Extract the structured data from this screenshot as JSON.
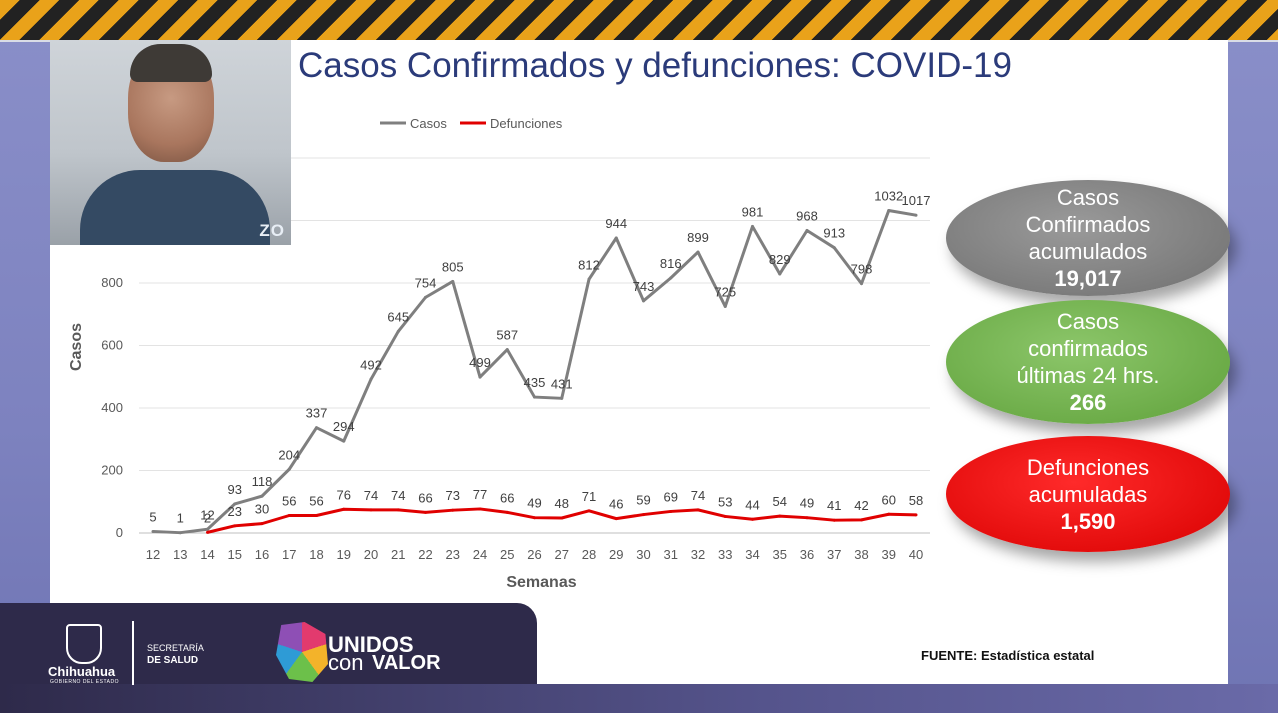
{
  "title": "Casos Confirmados y defunciones: COVID-19",
  "video_watermark": "ZO",
  "summary": [
    {
      "lines": [
        "Casos",
        "Confirmados",
        "acumulados"
      ],
      "value": "19,017",
      "color": "#7f7f7f"
    },
    {
      "lines": [
        "Casos",
        "confirmados",
        "últimas 24 hrs."
      ],
      "value": "266",
      "color": "#70ad47"
    },
    {
      "lines": [
        "Defunciones",
        "acumuladas"
      ],
      "value": "1,590",
      "color": "#ff0000"
    }
  ],
  "footer": {
    "state_name": "Chihuahua",
    "state_sub": "GOBIERNO DEL ESTADO",
    "secretaria_line1": "SECRETARÍA",
    "secretaria_line2": "DE SALUD",
    "unidos": "UNIDOS",
    "con": "con",
    "valor": "VALOR",
    "source": "FUENTE: Estadística estatal"
  },
  "chart_data": {
    "type": "line",
    "title": "",
    "xlabel": "Semanas",
    "ylabel": "Casos",
    "ylim": [
      0,
      1200
    ],
    "yticks": [
      0,
      200,
      400,
      600,
      800
    ],
    "grid": true,
    "legend_position": "top",
    "categories": [
      "12",
      "13",
      "14",
      "15",
      "16",
      "17",
      "18",
      "19",
      "20",
      "21",
      "22",
      "23",
      "24",
      "25",
      "26",
      "27",
      "28",
      "29",
      "30",
      "31",
      "32",
      "33",
      "34",
      "35",
      "36",
      "37",
      "38",
      "39",
      "40"
    ],
    "series": [
      {
        "name": "Casos",
        "color": "#7f7f7f",
        "values": [
          5,
          1,
          12,
          93,
          118,
          204,
          337,
          294,
          492,
          645,
          754,
          805,
          499,
          587,
          435,
          431,
          812,
          944,
          743,
          816,
          899,
          725,
          981,
          829,
          968,
          913,
          798,
          1032,
          1017
        ]
      },
      {
        "name": "Defunciones",
        "color": "#e00000",
        "values": [
          null,
          null,
          2,
          23,
          30,
          56,
          56,
          76,
          74,
          74,
          66,
          73,
          77,
          66,
          49,
          48,
          71,
          46,
          59,
          69,
          74,
          53,
          44,
          54,
          49,
          41,
          42,
          60,
          58
        ]
      }
    ]
  }
}
